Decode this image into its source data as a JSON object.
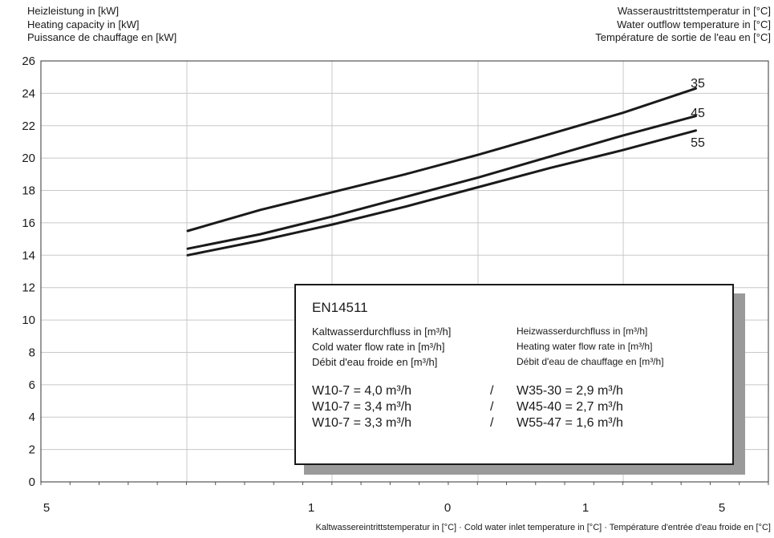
{
  "y_axis_title": [
    "Heizleistung in [kW]",
    "Heating capacity in [kW]",
    "Puissance de chauffage en [kW]"
  ],
  "right_axis_title": [
    "Wasseraustrittstemperatur in [°C]",
    "Water outflow temperature in [°C]",
    "Température de sortie de l'eau en [°C]"
  ],
  "x_axis_title": "Kaltwassereintrittstemperatur in [°C] · Cold water inlet temperature in [°C] · Température d'entrée d'eau froide en [°C]",
  "legend_box": {
    "standard": "EN14511",
    "left_header": [
      "Kaltwasserdurchfluss in [m³/h]",
      "Cold water flow rate in [m³/h]",
      "Débit d'eau froide en [m³/h]"
    ],
    "right_header": [
      "Heizwasserdurchfluss in [m³/h]",
      "Heating water flow rate in [m³/h]",
      "Débit d'eau de chauffage en [m³/h]"
    ],
    "rows": [
      {
        "cold": "W10-7 = 4,0 m³/h",
        "sep": "/",
        "hot": "W35-30 = 2,9 m³/h"
      },
      {
        "cold": "W10-7 = 3,4 m³/h",
        "sep": "/",
        "hot": "W45-40 = 2,7 m³/h"
      },
      {
        "cold": "W10-7 = 3,3 m³/h",
        "sep": "/",
        "hot": "W55-47 = 1,6 m³/h"
      }
    ]
  },
  "chart_data": {
    "type": "line",
    "y_ticks": [
      "0",
      "2",
      "4",
      "6",
      "8",
      "10",
      "12",
      "14",
      "16",
      "18",
      "20",
      "22",
      "24",
      "26"
    ],
    "ylim": [
      0,
      26
    ],
    "x_tick_labels": [
      "5",
      "1",
      "0",
      "1",
      "5"
    ],
    "x": [
      -8,
      -6,
      -4,
      -2,
      0,
      2,
      4,
      6
    ],
    "series": [
      {
        "name": "35",
        "color": "#1a1a1a",
        "values": [
          15.5,
          16.8,
          17.9,
          19.0,
          20.2,
          21.5,
          22.8,
          24.3
        ]
      },
      {
        "name": "45",
        "color": "#1a1a1a",
        "values": [
          14.4,
          15.3,
          16.4,
          17.6,
          18.8,
          20.1,
          21.4,
          22.6
        ]
      },
      {
        "name": "55",
        "color": "#1a1a1a",
        "values": [
          14.0,
          14.9,
          15.9,
          17.0,
          18.2,
          19.4,
          20.5,
          21.7
        ]
      }
    ],
    "grid": true
  }
}
